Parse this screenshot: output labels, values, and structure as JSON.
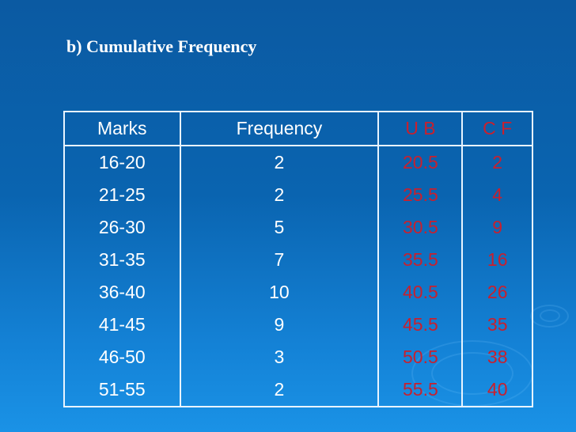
{
  "title": "b) Cumulative Frequency",
  "colors": {
    "red_text": "#c8202e",
    "white_text": "#ffffff"
  },
  "table": {
    "headers": [
      "Marks",
      "Frequency",
      "U B",
      "C F"
    ],
    "rows": [
      [
        "16-20",
        "2",
        "20.5",
        "2"
      ],
      [
        "21-25",
        "2",
        "25.5",
        "4"
      ],
      [
        "26-30",
        "5",
        "30.5",
        "9"
      ],
      [
        "31-35",
        "7",
        "35.5",
        "16"
      ],
      [
        "36-40",
        "10",
        "40.5",
        "26"
      ],
      [
        "41-45",
        "9",
        "45.5",
        "35"
      ],
      [
        "46-50",
        "3",
        "50.5",
        "38"
      ],
      [
        "51-55",
        "2",
        "55.5",
        "40"
      ]
    ]
  }
}
